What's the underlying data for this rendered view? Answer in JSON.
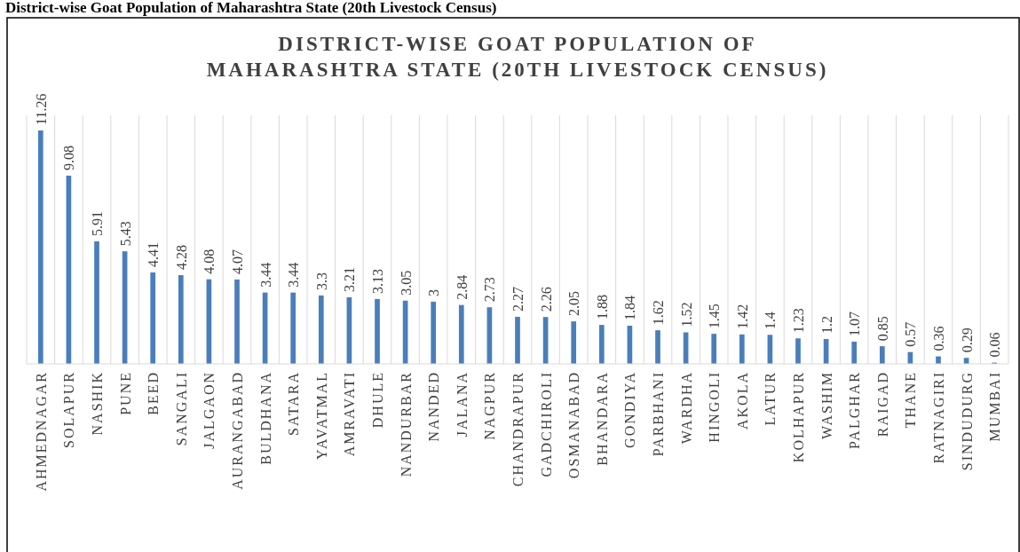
{
  "chart_data": {
    "type": "bar",
    "title": "DISTRICT-WISE GOAT POPULATION OF MAHARASHTRA STATE (20TH LIVESTOCK CENSUS)",
    "annotations": [
      "District-wise Goat Population of Maharashtra State (20th Livestock Census)"
    ],
    "categories": [
      "AHMEDNAGAR",
      "SOLAPUR",
      "NASHIK",
      "PUNE",
      "BEED",
      "SANGALI",
      "JALGAON",
      "AURANGABAD",
      "BULDHANA",
      "SATARA",
      "YAVATMAL",
      "AMRAVATI",
      "DHULE",
      "NANDURBAR",
      "NANDED",
      "JALANA",
      "NAGPUR",
      "CHANDRAPUR",
      "GADCHIROLI",
      "OSMANABAD",
      "BHANDARA",
      "GONDIYA",
      "PARBHANI",
      "WARDHA",
      "HINGOLI",
      "AKOLA",
      "LATUR",
      "KOLHAPUR",
      "WASHIM",
      "PALGHAR",
      "RAIGAD",
      "THANE",
      "RATNAGIRI",
      "SINDUDURG",
      "MUMBAI"
    ],
    "values": [
      11.26,
      9.08,
      5.91,
      5.43,
      4.41,
      4.28,
      4.08,
      4.07,
      3.44,
      3.44,
      3.3,
      3.21,
      3.13,
      3.05,
      3,
      2.84,
      2.73,
      2.27,
      2.26,
      2.05,
      1.88,
      1.84,
      1.62,
      1.52,
      1.45,
      1.42,
      1.4,
      1.23,
      1.2,
      1.07,
      0.85,
      0.57,
      0.36,
      0.29,
      0.06
    ],
    "color": "#4a7ebb",
    "data_labels": true,
    "grid": "x"
  }
}
